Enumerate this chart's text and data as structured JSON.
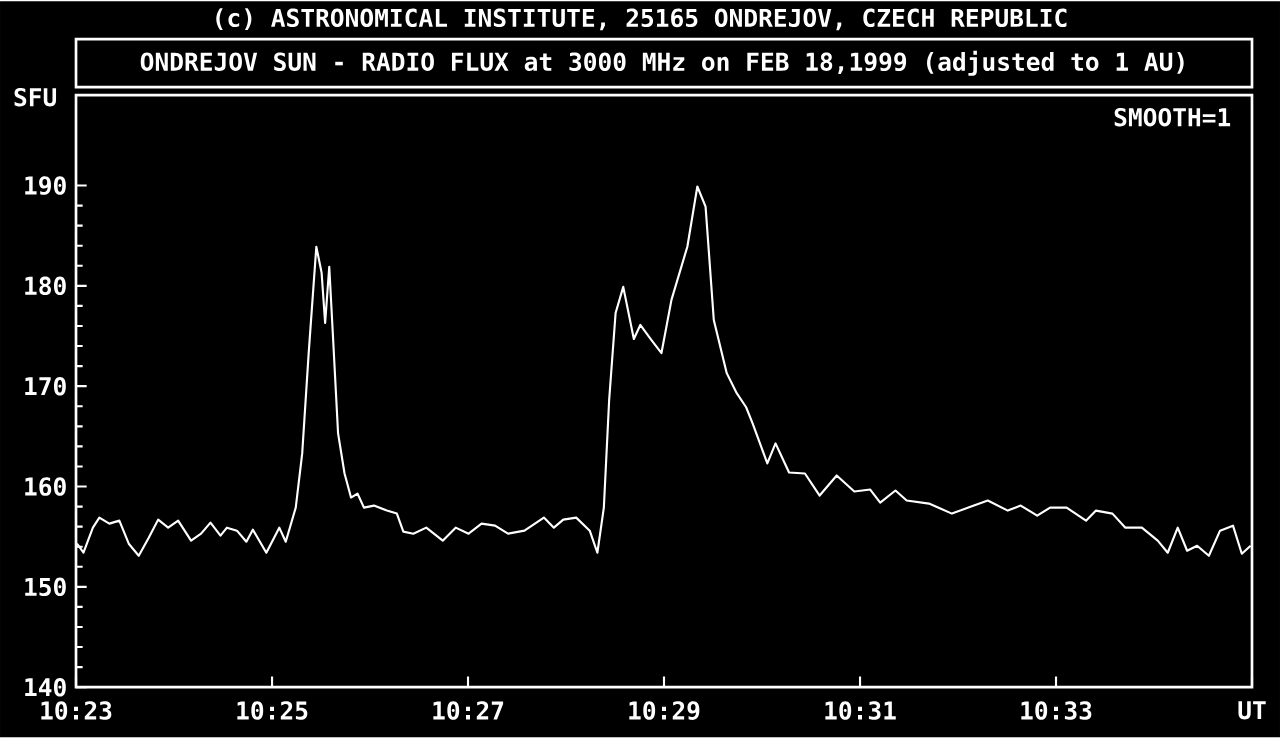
{
  "chart_data": {
    "type": "line",
    "title": "ONDREJOV SUN - RADIO FLUX at 3000 MHz on FEB 18,1999 (adjusted to 1 AU)",
    "ylabel": "SFU",
    "annotations": [
      "(c) ASTRONOMICAL INSTITUTE, 25165 ONDREJOV, CZECH REPUBLIC",
      "SMOOTH=1"
    ],
    "xlim": [
      10.38333,
      10.58333
    ],
    "ylim": [
      140,
      199
    ],
    "xticks": [
      {
        "value": 10.38333,
        "label": "10:23"
      },
      {
        "value": 10.41667,
        "label": "10:25"
      },
      {
        "value": 10.45,
        "label": "10:27"
      },
      {
        "value": 10.48333,
        "label": "10:29"
      },
      {
        "value": 10.51667,
        "label": "10:31"
      },
      {
        "value": 10.55,
        "label": "10:33"
      },
      {
        "value": 10.58333,
        "label": "UT"
      }
    ],
    "yticks": [
      140,
      150,
      160,
      170,
      180,
      190
    ],
    "grid": false,
    "legend": false,
    "series": [
      {
        "color": "#ffffff",
        "x": [
          10.3835,
          10.3846,
          10.3862,
          10.3873,
          10.389,
          10.3907,
          10.3923,
          10.394,
          10.3957,
          10.3973,
          10.399,
          10.4007,
          10.4029,
          10.4046,
          10.4062,
          10.4079,
          10.409,
          10.4107,
          10.4123,
          10.4134,
          10.4157,
          10.4179,
          10.419,
          10.4207,
          10.4218,
          10.4229,
          10.4242,
          10.4251,
          10.4257,
          10.4264,
          10.427,
          10.4279,
          10.429,
          10.4301,
          10.4312,
          10.4323,
          10.434,
          10.4362,
          10.4379,
          10.439,
          10.4407,
          10.4429,
          10.4457,
          10.4479,
          10.4501,
          10.4523,
          10.4546,
          10.4568,
          10.4596,
          10.4629,
          10.4646,
          10.4662,
          10.4684,
          10.4707,
          10.472,
          10.4731,
          10.474,
          10.4751,
          10.4764,
          10.4782,
          10.4793,
          10.4812,
          10.4829,
          10.4846,
          10.4873,
          10.489,
          10.4904,
          10.4918,
          10.494,
          10.4957,
          10.4973,
          10.4984,
          10.5009,
          10.5023,
          10.5046,
          10.5073,
          10.5098,
          10.5127,
          10.5157,
          10.5184,
          10.5201,
          10.5227,
          10.5246,
          10.5284,
          10.5323,
          10.5351,
          10.5384,
          10.5418,
          10.544,
          10.5468,
          10.549,
          10.5518,
          10.5551,
          10.5568,
          10.5596,
          10.5618,
          10.5646,
          10.5673,
          10.569,
          10.5707,
          10.5723,
          10.574,
          10.576,
          10.5779,
          10.5801,
          10.5816,
          10.5831
        ],
        "values": [
          154.3,
          153.4,
          155.9,
          156.9,
          156.3,
          156.6,
          154.3,
          153.1,
          154.9,
          156.7,
          155.9,
          156.6,
          154.6,
          155.3,
          156.4,
          155.1,
          155.9,
          155.6,
          154.5,
          155.7,
          153.4,
          155.9,
          154.5,
          157.9,
          163.3,
          173.3,
          183.9,
          181.3,
          176.3,
          181.9,
          175.3,
          165.3,
          161.3,
          158.9,
          159.3,
          157.9,
          158.1,
          157.6,
          157.3,
          155.5,
          155.3,
          155.9,
          154.6,
          155.9,
          155.3,
          156.3,
          156.1,
          155.3,
          155.6,
          156.9,
          155.9,
          156.7,
          156.9,
          155.6,
          153.4,
          157.9,
          168.6,
          177.3,
          179.9,
          174.7,
          176.1,
          174.6,
          173.3,
          178.6,
          183.9,
          189.9,
          187.9,
          176.6,
          171.3,
          169.3,
          167.9,
          166.3,
          162.3,
          164.3,
          161.4,
          161.3,
          159.1,
          161.1,
          159.5,
          159.7,
          158.4,
          159.6,
          158.6,
          158.3,
          157.3,
          157.9,
          158.6,
          157.6,
          158.1,
          157.1,
          157.9,
          157.9,
          156.6,
          157.6,
          157.3,
          155.9,
          155.9,
          154.6,
          153.4,
          155.9,
          153.6,
          154.1,
          153.1,
          155.6,
          156.1,
          153.3,
          154.1
        ]
      }
    ]
  }
}
